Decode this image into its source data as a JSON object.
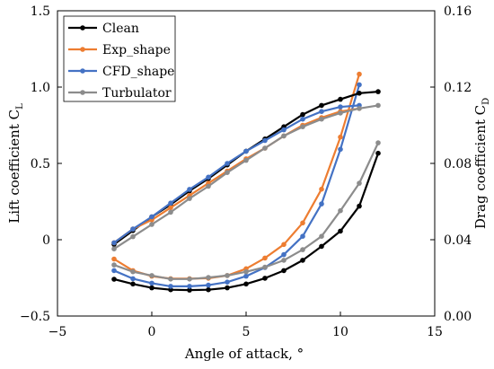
{
  "chart_data": {
    "type": "line",
    "xlabel": "Angle of attack, °",
    "ylabel_left": "Lift coefficient C",
    "ylabel_left_sub": "L",
    "ylabel_right": "Drag coefficient C",
    "ylabel_right_sub": "D",
    "xlim": [
      -5,
      15
    ],
    "ylim_left": [
      -0.5,
      1.5
    ],
    "ylim_right": [
      0.0,
      0.16
    ],
    "xticks": [
      -5,
      0,
      5,
      10,
      15
    ],
    "xtick_labels": [
      "−5",
      "0",
      "5",
      "10",
      "15"
    ],
    "yticks_left": [
      -0.5,
      0,
      0.5,
      1.0,
      1.5
    ],
    "ytick_labels_left": [
      "−0.5",
      "0",
      "0.5",
      "1.0",
      "1.5"
    ],
    "yticks_right": [
      0.0,
      0.04,
      0.08,
      0.12,
      0.16
    ],
    "ytick_labels_right": [
      "0.00",
      "0.04",
      "0.08",
      "0.12",
      "0.16"
    ],
    "grid": false,
    "legend_position": "top-left",
    "series": [
      {
        "name": "Clean",
        "color": "#000000",
        "lift": {
          "x": [
            -2,
            -1,
            0,
            1,
            2,
            3,
            4,
            5,
            6,
            7,
            8,
            9,
            10,
            11,
            12
          ],
          "y": [
            -0.03,
            0.06,
            0.15,
            0.23,
            0.32,
            0.4,
            0.49,
            0.58,
            0.66,
            0.74,
            0.82,
            0.88,
            0.92,
            0.96,
            0.97
          ]
        },
        "drag": {
          "x": [
            -2,
            -1,
            0,
            1,
            2,
            3,
            4,
            5,
            6,
            7,
            8,
            9,
            10,
            11,
            12
          ],
          "y": [
            0.0193,
            0.0168,
            0.0148,
            0.0138,
            0.0136,
            0.0138,
            0.0148,
            0.0168,
            0.0198,
            0.0238,
            0.0292,
            0.0365,
            0.0445,
            0.0576,
            0.0853
          ]
        }
      },
      {
        "name": "Exp_shape",
        "color": "#ed7d31",
        "lift": {
          "x": [
            -2,
            -1,
            0,
            1,
            2,
            3,
            4,
            5,
            6,
            7,
            8,
            9,
            10,
            11
          ],
          "y": [
            -0.02,
            0.07,
            0.13,
            0.21,
            0.29,
            0.37,
            0.45,
            0.53,
            0.6,
            0.68,
            0.75,
            0.8,
            0.84,
            0.86
          ]
        },
        "drag": {
          "x": [
            -2,
            -1,
            0,
            1,
            2,
            3,
            4,
            5,
            6,
            7,
            8,
            9,
            10,
            11
          ],
          "y": [
            0.0299,
            0.0238,
            0.0209,
            0.0196,
            0.0196,
            0.0198,
            0.0212,
            0.0248,
            0.0304,
            0.0375,
            0.0488,
            0.0665,
            0.0938,
            0.1268
          ]
        }
      },
      {
        "name": "CFD_shape",
        "color": "#4472c4",
        "lift": {
          "x": [
            -2,
            -1,
            0,
            1,
            2,
            3,
            4,
            5,
            6,
            7,
            8,
            9,
            10,
            11
          ],
          "y": [
            -0.02,
            0.07,
            0.15,
            0.24,
            0.33,
            0.41,
            0.5,
            0.58,
            0.65,
            0.72,
            0.79,
            0.84,
            0.87,
            0.88
          ]
        },
        "drag": {
          "x": [
            -2,
            -1,
            0,
            1,
            2,
            3,
            4,
            5,
            6,
            7,
            8,
            9,
            10,
            11
          ],
          "y": [
            0.0238,
            0.0196,
            0.0172,
            0.0156,
            0.0156,
            0.0162,
            0.0178,
            0.0209,
            0.0254,
            0.0322,
            0.0418,
            0.0588,
            0.0874,
            0.1212
          ]
        }
      },
      {
        "name": "Turbulator",
        "color": "#8c8c8c",
        "lift": {
          "x": [
            -2,
            -1,
            0,
            1,
            2,
            3,
            4,
            5,
            6,
            7,
            8,
            9,
            10,
            11,
            12
          ],
          "y": [
            -0.06,
            0.02,
            0.1,
            0.18,
            0.27,
            0.35,
            0.44,
            0.52,
            0.6,
            0.68,
            0.74,
            0.79,
            0.83,
            0.86,
            0.88
          ]
        },
        "drag": {
          "x": [
            -2,
            -1,
            0,
            1,
            2,
            3,
            4,
            5,
            6,
            7,
            8,
            9,
            10,
            11,
            12
          ],
          "y": [
            0.0268,
            0.0232,
            0.0212,
            0.0194,
            0.0194,
            0.0202,
            0.0212,
            0.0232,
            0.0256,
            0.0292,
            0.0348,
            0.0418,
            0.0552,
            0.0696,
            0.0908
          ]
        }
      }
    ]
  }
}
